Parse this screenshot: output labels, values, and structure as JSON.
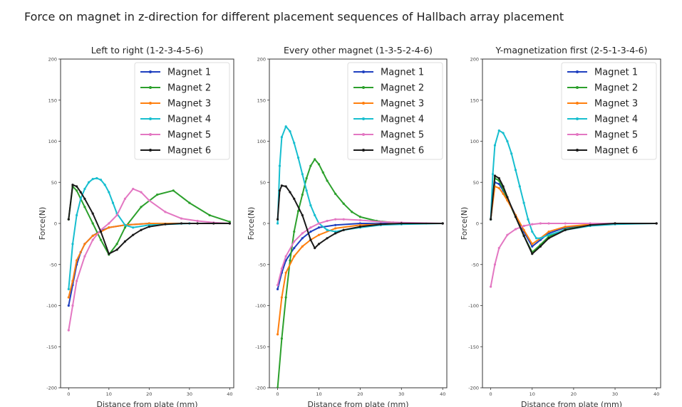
{
  "figure_title": "Force on magnet in z-direction for different placement sequences of Hallbach array placement",
  "chart_data": [
    {
      "type": "line",
      "title": "Left to right (1-2-3-4-5-6)",
      "xlabel": "Distance from plate (mm)",
      "ylabel": "Force(N)",
      "xlim": [
        -2,
        41
      ],
      "ylim": [
        -200,
        200
      ],
      "xticks": [
        0,
        10,
        20,
        30,
        40
      ],
      "yticks": [
        -200,
        -150,
        -100,
        -50,
        0,
        50,
        100,
        150,
        200
      ],
      "yticklabels": [
        "-200",
        "-150",
        "-100",
        "-50",
        "0",
        "50",
        "100",
        "150",
        "200"
      ],
      "grid": false,
      "legend": "top-right",
      "series": [
        {
          "name": "Magnet 1",
          "color": "#1f3fbf",
          "x": [
            0,
            1,
            2,
            3,
            4,
            6,
            8,
            10,
            14,
            20,
            30,
            40
          ],
          "y": [
            -100,
            -75,
            -50,
            -35,
            -25,
            -15,
            -9,
            -5,
            -2,
            0,
            0,
            0
          ]
        },
        {
          "name": "Magnet 2",
          "color": "#2ca02c",
          "x": [
            0,
            1,
            2,
            4,
            6,
            8,
            10,
            12,
            14,
            18,
            22,
            26,
            30,
            35,
            40
          ],
          "y": [
            5,
            45,
            40,
            20,
            0,
            -20,
            -38,
            -25,
            -5,
            20,
            35,
            40,
            25,
            10,
            2
          ]
        },
        {
          "name": "Magnet 3",
          "color": "#ff7f0e",
          "x": [
            0,
            1,
            2,
            4,
            6,
            8,
            10,
            14,
            20,
            30,
            40
          ],
          "y": [
            -90,
            -70,
            -45,
            -25,
            -15,
            -10,
            -5,
            -2,
            0,
            0,
            0
          ]
        },
        {
          "name": "Magnet 4",
          "color": "#17becf",
          "x": [
            0,
            1,
            2,
            3,
            4,
            5,
            6,
            7,
            8,
            9,
            10,
            11,
            12,
            14,
            16,
            20,
            30,
            40
          ],
          "y": [
            -80,
            -25,
            10,
            30,
            42,
            50,
            54,
            55,
            53,
            47,
            38,
            25,
            12,
            -2,
            -5,
            -2,
            0,
            0
          ]
        },
        {
          "name": "Magnet 5",
          "color": "#e377c2",
          "x": [
            0,
            1,
            2,
            4,
            6,
            8,
            10,
            12,
            14,
            16,
            18,
            20,
            24,
            28,
            32,
            36,
            40
          ],
          "y": [
            -130,
            -100,
            -70,
            -40,
            -20,
            -8,
            0,
            10,
            30,
            42,
            38,
            28,
            14,
            6,
            3,
            1,
            0
          ]
        },
        {
          "name": "Magnet 6",
          "color": "#1a1a1a",
          "x": [
            0,
            1,
            2,
            3,
            4,
            6,
            8,
            10,
            12,
            14,
            16,
            18,
            20,
            24,
            28,
            32,
            36,
            40
          ],
          "y": [
            5,
            47,
            45,
            38,
            30,
            12,
            -10,
            -37,
            -32,
            -22,
            -14,
            -8,
            -4,
            -1,
            0,
            0,
            0,
            0
          ]
        }
      ]
    },
    {
      "type": "line",
      "title": "Every other magnet (1-3-5-2-4-6)",
      "xlabel": "Distance from plate (mm)",
      "ylabel": "Force(N)",
      "xlim": [
        -2,
        41
      ],
      "ylim": [
        -200,
        200
      ],
      "xticks": [
        0,
        10,
        20,
        30,
        40
      ],
      "yticks": [
        -200,
        -150,
        -100,
        -50,
        0,
        50,
        100,
        150,
        200
      ],
      "yticklabels": [
        "-200",
        "-150",
        "-100",
        "-50",
        "0",
        "50",
        "100",
        "150",
        "200"
      ],
      "grid": false,
      "legend": "top-right",
      "series": [
        {
          "name": "Magnet 1",
          "color": "#1f3fbf",
          "x": [
            0,
            1,
            2,
            4,
            6,
            8,
            10,
            14,
            20,
            30,
            40
          ],
          "y": [
            -80,
            -60,
            -45,
            -30,
            -18,
            -10,
            -5,
            -2,
            0,
            0,
            0
          ]
        },
        {
          "name": "Magnet 2",
          "color": "#2ca02c",
          "x": [
            0,
            1,
            2,
            3,
            4,
            5,
            6,
            7,
            8,
            9,
            10,
            11,
            12,
            14,
            16,
            18,
            20,
            24,
            28,
            32,
            36,
            40
          ],
          "y": [
            -200,
            -140,
            -90,
            -45,
            -10,
            15,
            35,
            55,
            70,
            78,
            72,
            62,
            52,
            36,
            24,
            14,
            8,
            3,
            1,
            0,
            0,
            0
          ]
        },
        {
          "name": "Magnet 3",
          "color": "#ff7f0e",
          "x": [
            0,
            1,
            2,
            4,
            6,
            8,
            10,
            14,
            20,
            30,
            40
          ],
          "y": [
            -135,
            -90,
            -60,
            -40,
            -28,
            -20,
            -14,
            -6,
            -2,
            0,
            0
          ]
        },
        {
          "name": "Magnet 4",
          "color": "#17becf",
          "x": [
            0,
            0.5,
            1,
            2,
            3,
            4,
            5,
            6,
            7,
            8,
            9,
            10,
            12,
            14,
            16,
            20,
            25,
            30,
            40
          ],
          "y": [
            0,
            70,
            105,
            118,
            112,
            98,
            80,
            60,
            40,
            22,
            10,
            0,
            -8,
            -10,
            -8,
            -5,
            -2,
            -1,
            0
          ]
        },
        {
          "name": "Magnet 5",
          "color": "#e377c2",
          "x": [
            0,
            1,
            2,
            4,
            6,
            8,
            10,
            12,
            14,
            16,
            20,
            25,
            30,
            40
          ],
          "y": [
            -75,
            -55,
            -40,
            -22,
            -12,
            -5,
            0,
            3,
            5,
            5,
            4,
            2,
            1,
            0
          ]
        },
        {
          "name": "Magnet 6",
          "color": "#1a1a1a",
          "x": [
            0,
            0.5,
            1,
            2,
            3,
            4,
            6,
            8,
            9,
            10,
            12,
            14,
            16,
            20,
            25,
            30,
            40
          ],
          "y": [
            5,
            40,
            46,
            45,
            38,
            30,
            10,
            -20,
            -30,
            -25,
            -18,
            -12,
            -8,
            -4,
            -1,
            0,
            0
          ]
        }
      ]
    },
    {
      "type": "line",
      "title": "Y-magnetization first (2-5-1-3-4-6)",
      "xlabel": "Distance from plate (mm)",
      "ylabel": "Force(N)",
      "xlim": [
        -2,
        41
      ],
      "ylim": [
        -200,
        200
      ],
      "xticks": [
        0,
        10,
        20,
        30,
        40
      ],
      "yticks": [
        -200,
        -150,
        -100,
        -50,
        0,
        50,
        100,
        150,
        200
      ],
      "yticklabels": [
        "-200",
        "-150",
        "-100",
        "-50",
        "0",
        "50",
        "100",
        "150",
        "200"
      ],
      "grid": false,
      "legend": "top-right",
      "series": [
        {
          "name": "Magnet 1",
          "color": "#1f3fbf",
          "x": [
            0,
            1,
            2,
            3,
            4,
            6,
            8,
            10,
            12,
            14,
            18,
            24,
            30,
            40
          ],
          "y": [
            5,
            50,
            48,
            40,
            30,
            10,
            -10,
            -28,
            -20,
            -12,
            -5,
            -1,
            0,
            0
          ]
        },
        {
          "name": "Magnet 2",
          "color": "#2ca02c",
          "x": [
            0,
            1,
            2,
            3,
            4,
            6,
            8,
            10,
            12,
            14,
            18,
            24,
            30,
            40
          ],
          "y": [
            5,
            55,
            52,
            42,
            30,
            8,
            -15,
            -35,
            -26,
            -16,
            -7,
            -2,
            0,
            0
          ]
        },
        {
          "name": "Magnet 3",
          "color": "#ff7f0e",
          "x": [
            0,
            1,
            2,
            3,
            4,
            6,
            8,
            10,
            12,
            14,
            18,
            24,
            30,
            40
          ],
          "y": [
            5,
            45,
            43,
            36,
            28,
            10,
            -8,
            -25,
            -18,
            -10,
            -4,
            -1,
            0,
            0
          ]
        },
        {
          "name": "Magnet 4",
          "color": "#17becf",
          "x": [
            0,
            0.5,
            1,
            2,
            3,
            4,
            5,
            6,
            7,
            8,
            9,
            10,
            11,
            12,
            14,
            18,
            24,
            30,
            40
          ],
          "y": [
            5,
            60,
            95,
            113,
            110,
            100,
            85,
            65,
            45,
            25,
            5,
            -10,
            -18,
            -18,
            -14,
            -8,
            -3,
            -1,
            0
          ]
        },
        {
          "name": "Magnet 5",
          "color": "#e377c2",
          "x": [
            0,
            1,
            2,
            4,
            6,
            8,
            10,
            12,
            14,
            18,
            24,
            30,
            40
          ],
          "y": [
            -77,
            -50,
            -30,
            -14,
            -7,
            -3,
            -1,
            0,
            0,
            0,
            0,
            0,
            0
          ]
        },
        {
          "name": "Magnet 6",
          "color": "#1a1a1a",
          "x": [
            0,
            1,
            2,
            3,
            4,
            6,
            8,
            10,
            12,
            14,
            18,
            24,
            30,
            40
          ],
          "y": [
            5,
            58,
            55,
            45,
            32,
            8,
            -15,
            -37,
            -28,
            -18,
            -8,
            -2,
            0,
            0
          ]
        }
      ]
    }
  ]
}
